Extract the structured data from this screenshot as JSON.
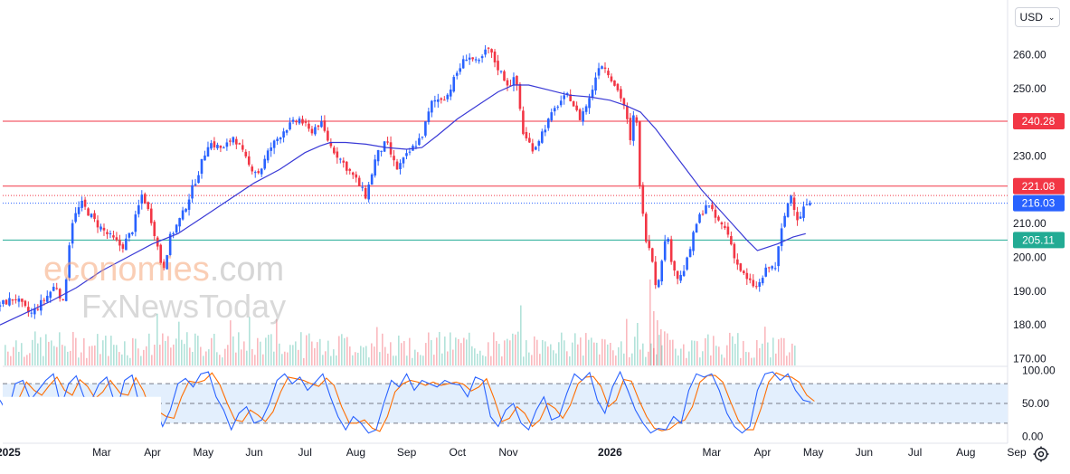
{
  "currency_selector": {
    "label": "USD",
    "icon": "chevron-down-icon"
  },
  "watermark": {
    "line1_a": "economies",
    "line1_b": ".com",
    "line2": "FxNewsToday"
  },
  "colors": {
    "up": "#2962ff",
    "down": "#f23645",
    "ma": "#3a3ad6",
    "resistance": "#f23645",
    "support": "#22ab94",
    "current": "#2962ff",
    "stoch_k": "#2962ff",
    "stoch_d": "#ff6d00",
    "stoch_band": "#e3effd"
  },
  "chart_data": [
    {
      "type": "candlestick",
      "title": "",
      "ylim": [
        168,
        266
      ],
      "y_ticks": [
        "260.00",
        "250.00",
        "240.00",
        "230.00",
        "220.00",
        "210.00",
        "200.00",
        "190.00",
        "180.00",
        "170.00"
      ],
      "x_ticks": [
        {
          "label": "2025",
          "bold": true,
          "month_index": 0
        },
        {
          "label": "Mar",
          "bold": false,
          "month_index": 2
        },
        {
          "label": "Apr",
          "bold": false,
          "month_index": 3
        },
        {
          "label": "May",
          "bold": false,
          "month_index": 4
        },
        {
          "label": "Jun",
          "bold": false,
          "month_index": 5
        },
        {
          "label": "Jul",
          "bold": false,
          "month_index": 6
        },
        {
          "label": "Aug",
          "bold": false,
          "month_index": 7
        },
        {
          "label": "Sep",
          "bold": false,
          "month_index": 8
        },
        {
          "label": "Oct",
          "bold": false,
          "month_index": 9
        },
        {
          "label": "Nov",
          "bold": false,
          "month_index": 10
        },
        {
          "label": "2026",
          "bold": true,
          "month_index": 12
        },
        {
          "label": "Mar",
          "bold": false,
          "month_index": 14
        },
        {
          "label": "Apr",
          "bold": false,
          "month_index": 15
        },
        {
          "label": "May",
          "bold": false,
          "month_index": 16
        },
        {
          "label": "Jun",
          "bold": false,
          "month_index": 17
        },
        {
          "label": "Jul",
          "bold": false,
          "month_index": 18
        },
        {
          "label": "Aug",
          "bold": false,
          "month_index": 19
        },
        {
          "label": "Sep",
          "bold": false,
          "month_index": 20
        }
      ],
      "price_lines": [
        {
          "name": "resistance-upper",
          "value": 240.28,
          "label": "240.28",
          "color": "#f23645",
          "style": "solid"
        },
        {
          "name": "resistance-lower",
          "value": 221.08,
          "label": "221.08",
          "color": "#f23645",
          "style": "solid"
        },
        {
          "name": "current-price",
          "value": 216.03,
          "label": "216.03",
          "color": "#2962ff",
          "style": "dotted"
        },
        {
          "name": "support",
          "value": 205.11,
          "label": "205.11",
          "color": "#22ab94",
          "style": "solid"
        }
      ],
      "extra_dotted_line": 218.3,
      "price_path_months": [
        [
          0.0,
          186
        ],
        [
          0.3,
          188
        ],
        [
          0.6,
          183
        ],
        [
          0.9,
          188
        ],
        [
          1.1,
          192
        ],
        [
          1.25,
          186
        ],
        [
          1.4,
          210
        ],
        [
          1.6,
          216
        ],
        [
          1.9,
          210
        ],
        [
          2.1,
          207
        ],
        [
          2.4,
          203
        ],
        [
          2.6,
          208
        ],
        [
          2.8,
          219
        ],
        [
          3.0,
          210
        ],
        [
          3.2,
          196
        ],
        [
          3.35,
          206
        ],
        [
          3.6,
          213
        ],
        [
          3.9,
          225
        ],
        [
          4.1,
          234
        ],
        [
          4.4,
          232
        ],
        [
          4.6,
          236
        ],
        [
          4.9,
          227
        ],
        [
          5.1,
          225
        ],
        [
          5.3,
          232
        ],
        [
          5.6,
          238
        ],
        [
          5.9,
          241
        ],
        [
          6.1,
          237
        ],
        [
          6.3,
          240
        ],
        [
          6.5,
          233
        ],
        [
          6.8,
          227
        ],
        [
          7.0,
          223
        ],
        [
          7.2,
          218
        ],
        [
          7.4,
          230
        ],
        [
          7.6,
          234
        ],
        [
          7.8,
          226
        ],
        [
          8.1,
          232
        ],
        [
          8.3,
          236
        ],
        [
          8.5,
          246
        ],
        [
          8.8,
          248
        ],
        [
          9.0,
          255
        ],
        [
          9.2,
          260
        ],
        [
          9.4,
          257
        ],
        [
          9.6,
          262
        ],
        [
          9.8,
          256
        ],
        [
          10.0,
          251
        ],
        [
          10.15,
          253
        ],
        [
          10.3,
          236
        ],
        [
          10.5,
          232
        ],
        [
          10.7,
          238
        ],
        [
          11.0,
          246
        ],
        [
          11.2,
          248
        ],
        [
          11.4,
          241
        ],
        [
          11.6,
          247
        ],
        [
          11.8,
          258
        ],
        [
          12.0,
          254
        ],
        [
          12.2,
          248
        ],
        [
          12.3,
          244
        ],
        [
          12.4,
          234
        ],
        [
          12.5,
          246
        ],
        [
          12.6,
          218
        ],
        [
          12.7,
          206
        ],
        [
          12.8,
          203
        ],
        [
          12.9,
          192
        ],
        [
          13.0,
          196
        ],
        [
          13.1,
          208
        ],
        [
          13.2,
          200
        ],
        [
          13.35,
          193
        ],
        [
          13.5,
          198
        ],
        [
          13.7,
          210
        ],
        [
          13.9,
          216
        ],
        [
          14.1,
          211
        ],
        [
          14.3,
          208
        ],
        [
          14.5,
          198
        ],
        [
          14.7,
          193
        ],
        [
          14.9,
          191
        ],
        [
          15.1,
          197
        ],
        [
          15.25,
          197
        ],
        [
          15.4,
          210
        ],
        [
          15.55,
          219
        ],
        [
          15.7,
          211
        ],
        [
          15.85,
          216
        ],
        [
          15.95,
          215
        ]
      ],
      "moving_average_months": [
        [
          0.0,
          180
        ],
        [
          0.5,
          183.5
        ],
        [
          1.0,
          187
        ],
        [
          1.5,
          191
        ],
        [
          2.0,
          196
        ],
        [
          2.5,
          200
        ],
        [
          3.0,
          204
        ],
        [
          3.5,
          207
        ],
        [
          4.0,
          212
        ],
        [
          4.5,
          217
        ],
        [
          5.0,
          222
        ],
        [
          5.5,
          226
        ],
        [
          6.0,
          231
        ],
        [
          6.3,
          233
        ],
        [
          6.5,
          234
        ],
        [
          6.8,
          234
        ],
        [
          7.2,
          233.5
        ],
        [
          7.6,
          232.5
        ],
        [
          8.0,
          232
        ],
        [
          8.3,
          232.5
        ],
        [
          8.6,
          236
        ],
        [
          9.0,
          241
        ],
        [
          9.4,
          245
        ],
        [
          9.8,
          249
        ],
        [
          10.1,
          251
        ],
        [
          10.4,
          251
        ],
        [
          10.8,
          249.5
        ],
        [
          11.2,
          248
        ],
        [
          11.6,
          247.5
        ],
        [
          12.0,
          246.5
        ],
        [
          12.3,
          245
        ],
        [
          12.6,
          243
        ],
        [
          12.9,
          238
        ],
        [
          13.2,
          232
        ],
        [
          13.5,
          226
        ],
        [
          13.8,
          220
        ],
        [
          14.1,
          215
        ],
        [
          14.4,
          210
        ],
        [
          14.7,
          205
        ],
        [
          14.9,
          202
        ],
        [
          15.1,
          203
        ],
        [
          15.3,
          204
        ],
        [
          15.6,
          206
        ],
        [
          15.85,
          207
        ]
      ]
    },
    {
      "type": "line",
      "title": "",
      "ylim": [
        -5,
        105
      ],
      "y_ticks": [
        "100.00",
        "50.00",
        "0.00"
      ],
      "band": [
        20,
        80
      ],
      "series": [
        {
          "name": "",
          "role": "k"
        },
        {
          "name": "",
          "role": "d"
        }
      ],
      "k_path_months": [
        [
          0.0,
          55
        ],
        [
          0.15,
          35
        ],
        [
          0.3,
          80
        ],
        [
          0.45,
          85
        ],
        [
          0.6,
          55
        ],
        [
          0.75,
          70
        ],
        [
          0.9,
          85
        ],
        [
          1.05,
          95
        ],
        [
          1.2,
          45
        ],
        [
          1.35,
          80
        ],
        [
          1.5,
          92
        ],
        [
          1.65,
          60
        ],
        [
          1.8,
          55
        ],
        [
          1.95,
          80
        ],
        [
          2.1,
          90
        ],
        [
          2.3,
          40
        ],
        [
          2.45,
          85
        ],
        [
          2.6,
          93
        ],
        [
          2.75,
          45
        ],
        [
          2.9,
          30
        ],
        [
          3.05,
          45
        ],
        [
          3.2,
          15
        ],
        [
          3.35,
          40
        ],
        [
          3.5,
          80
        ],
        [
          3.65,
          88
        ],
        [
          3.8,
          75
        ],
        [
          3.95,
          95
        ],
        [
          4.1,
          98
        ],
        [
          4.25,
          60
        ],
        [
          4.4,
          40
        ],
        [
          4.55,
          10
        ],
        [
          4.7,
          35
        ],
        [
          4.85,
          45
        ],
        [
          5.0,
          20
        ],
        [
          5.15,
          25
        ],
        [
          5.3,
          50
        ],
        [
          5.45,
          85
        ],
        [
          5.6,
          95
        ],
        [
          5.75,
          80
        ],
        [
          5.9,
          90
        ],
        [
          6.05,
          70
        ],
        [
          6.2,
          82
        ],
        [
          6.35,
          95
        ],
        [
          6.5,
          60
        ],
        [
          6.65,
          30
        ],
        [
          6.8,
          10
        ],
        [
          6.95,
          30
        ],
        [
          7.1,
          20
        ],
        [
          7.25,
          5
        ],
        [
          7.4,
          10
        ],
        [
          7.55,
          50
        ],
        [
          7.7,
          85
        ],
        [
          7.85,
          75
        ],
        [
          8.0,
          95
        ],
        [
          8.15,
          70
        ],
        [
          8.3,
          85
        ],
        [
          8.45,
          80
        ],
        [
          8.6,
          75
        ],
        [
          8.75,
          85
        ],
        [
          8.9,
          80
        ],
        [
          9.05,
          78
        ],
        [
          9.2,
          60
        ],
        [
          9.35,
          90
        ],
        [
          9.5,
          85
        ],
        [
          9.65,
          30
        ],
        [
          9.8,
          15
        ],
        [
          9.95,
          40
        ],
        [
          10.1,
          50
        ],
        [
          10.25,
          20
        ],
        [
          10.4,
          10
        ],
        [
          10.55,
          40
        ],
        [
          10.7,
          60
        ],
        [
          10.85,
          25
        ],
        [
          11.0,
          30
        ],
        [
          11.15,
          65
        ],
        [
          11.3,
          95
        ],
        [
          11.45,
          85
        ],
        [
          11.6,
          97
        ],
        [
          11.75,
          55
        ],
        [
          11.9,
          35
        ],
        [
          12.05,
          75
        ],
        [
          12.2,
          98
        ],
        [
          12.35,
          70
        ],
        [
          12.5,
          40
        ],
        [
          12.65,
          20
        ],
        [
          12.8,
          5
        ],
        [
          12.95,
          12
        ],
        [
          13.1,
          10
        ],
        [
          13.25,
          30
        ],
        [
          13.4,
          20
        ],
        [
          13.55,
          70
        ],
        [
          13.7,
          95
        ],
        [
          13.85,
          90
        ],
        [
          14.0,
          95
        ],
        [
          14.15,
          70
        ],
        [
          14.3,
          35
        ],
        [
          14.45,
          15
        ],
        [
          14.6,
          5
        ],
        [
          14.75,
          15
        ],
        [
          14.9,
          70
        ],
        [
          15.05,
          95
        ],
        [
          15.2,
          98
        ],
        [
          15.35,
          85
        ],
        [
          15.5,
          95
        ],
        [
          15.65,
          70
        ],
        [
          15.8,
          55
        ],
        [
          15.95,
          52
        ]
      ]
    }
  ]
}
